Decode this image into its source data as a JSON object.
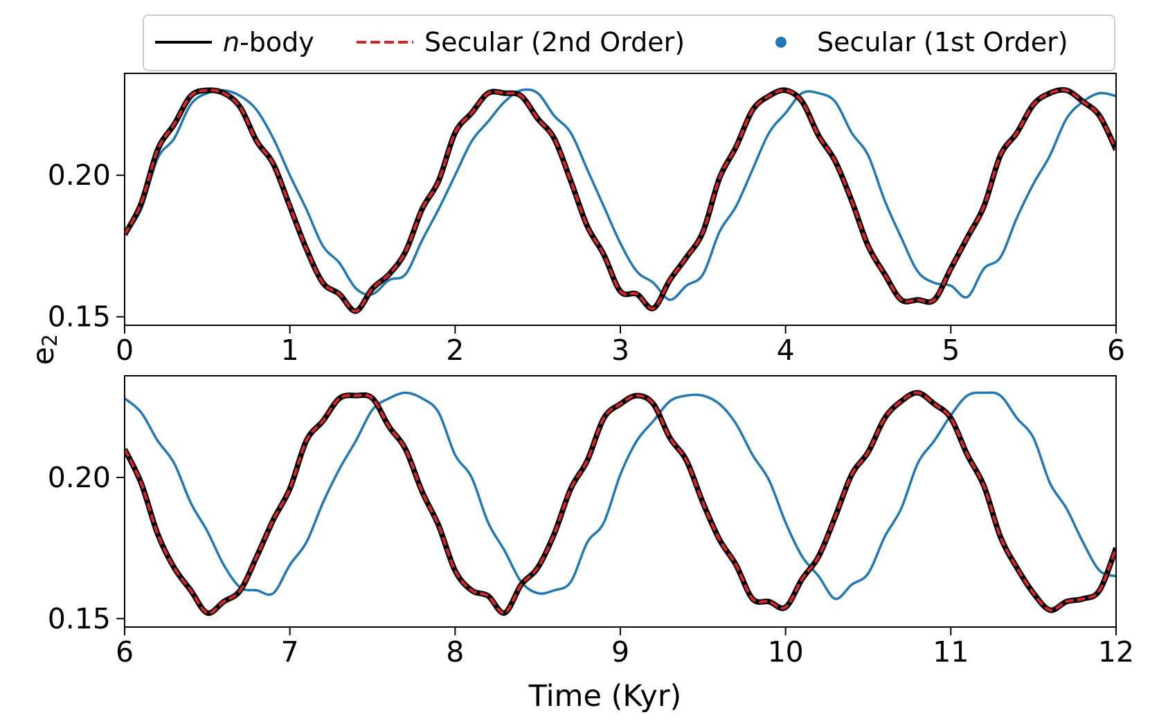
{
  "colors": {
    "nbody": "#000000",
    "secular2": "#d62728",
    "secular1": "#1f77b4"
  },
  "legend": {
    "items": [
      {
        "key": "nbody",
        "prefix": "n",
        "label": "-body",
        "style": "solid-line"
      },
      {
        "key": "secular2",
        "prefix": "",
        "label": "Secular (2nd Order)",
        "style": "dashed-line"
      },
      {
        "key": "secular1",
        "prefix": "",
        "label": "Secular (1st Order)",
        "style": "dot"
      }
    ]
  },
  "chart_data": [
    {
      "type": "line",
      "panel": "top",
      "xlim": [
        0,
        6
      ],
      "ylim": [
        0.147,
        0.236
      ],
      "x_ticks": [
        "0",
        "1",
        "2",
        "3",
        "4",
        "5",
        "6"
      ],
      "y_ticks": [
        "0.15",
        "0.20"
      ],
      "ylabel": "e",
      "ylabel_subscript": "2",
      "xlabel": "",
      "series": [
        {
          "name": "n-body",
          "key": "nbody",
          "x": [
            0.0,
            0.1,
            0.2,
            0.3,
            0.4,
            0.5,
            0.6,
            0.7,
            0.8,
            0.9,
            1.0,
            1.1,
            1.2,
            1.3,
            1.4,
            1.5,
            1.6,
            1.7,
            1.8,
            1.9,
            2.0,
            2.1,
            2.2,
            2.3,
            2.4,
            2.5,
            2.6,
            2.7,
            2.8,
            2.9,
            3.0,
            3.1,
            3.2,
            3.3,
            3.4,
            3.5,
            3.6,
            3.7,
            3.8,
            3.9,
            4.0,
            4.1,
            4.2,
            4.3,
            4.4,
            4.5,
            4.6,
            4.7,
            4.8,
            4.9,
            5.0,
            5.1,
            5.2,
            5.3,
            5.4,
            5.5,
            5.6,
            5.7,
            5.8,
            5.9,
            6.0
          ],
          "y": [
            0.179,
            0.19,
            0.209,
            0.218,
            0.228,
            0.23,
            0.229,
            0.224,
            0.212,
            0.204,
            0.189,
            0.174,
            0.162,
            0.158,
            0.152,
            0.16,
            0.165,
            0.173,
            0.188,
            0.198,
            0.215,
            0.222,
            0.229,
            0.229,
            0.228,
            0.22,
            0.213,
            0.198,
            0.182,
            0.172,
            0.159,
            0.158,
            0.153,
            0.163,
            0.171,
            0.18,
            0.199,
            0.21,
            0.223,
            0.228,
            0.23,
            0.226,
            0.214,
            0.205,
            0.191,
            0.175,
            0.165,
            0.156,
            0.156,
            0.156,
            0.167,
            0.178,
            0.189,
            0.207,
            0.215,
            0.225,
            0.229,
            0.23,
            0.226,
            0.221,
            0.209
          ]
        },
        {
          "name": "Secular (2nd Order)",
          "key": "secular2",
          "x": [
            0.0,
            0.1,
            0.2,
            0.3,
            0.4,
            0.5,
            0.6,
            0.7,
            0.8,
            0.9,
            1.0,
            1.1,
            1.2,
            1.3,
            1.4,
            1.5,
            1.6,
            1.7,
            1.8,
            1.9,
            2.0,
            2.1,
            2.2,
            2.3,
            2.4,
            2.5,
            2.6,
            2.7,
            2.8,
            2.9,
            3.0,
            3.1,
            3.2,
            3.3,
            3.4,
            3.5,
            3.6,
            3.7,
            3.8,
            3.9,
            4.0,
            4.1,
            4.2,
            4.3,
            4.4,
            4.5,
            4.6,
            4.7,
            4.8,
            4.9,
            5.0,
            5.1,
            5.2,
            5.3,
            5.4,
            5.5,
            5.6,
            5.7,
            5.8,
            5.9,
            6.0
          ],
          "y": [
            0.179,
            0.19,
            0.209,
            0.218,
            0.228,
            0.23,
            0.229,
            0.224,
            0.212,
            0.204,
            0.189,
            0.174,
            0.162,
            0.158,
            0.152,
            0.16,
            0.165,
            0.173,
            0.188,
            0.198,
            0.215,
            0.222,
            0.229,
            0.229,
            0.228,
            0.22,
            0.213,
            0.198,
            0.182,
            0.172,
            0.159,
            0.158,
            0.153,
            0.163,
            0.171,
            0.18,
            0.199,
            0.21,
            0.223,
            0.228,
            0.23,
            0.226,
            0.214,
            0.205,
            0.191,
            0.175,
            0.165,
            0.156,
            0.156,
            0.156,
            0.167,
            0.178,
            0.189,
            0.207,
            0.215,
            0.225,
            0.229,
            0.23,
            0.226,
            0.221,
            0.209
          ]
        },
        {
          "name": "Secular (1st Order)",
          "key": "secular1",
          "x": [
            0.0,
            0.1,
            0.2,
            0.3,
            0.4,
            0.5,
            0.6,
            0.7,
            0.8,
            0.9,
            1.0,
            1.1,
            1.2,
            1.3,
            1.4,
            1.5,
            1.6,
            1.7,
            1.8,
            1.9,
            2.0,
            2.1,
            2.2,
            2.3,
            2.4,
            2.5,
            2.6,
            2.7,
            2.8,
            2.9,
            3.0,
            3.1,
            3.2,
            3.3,
            3.4,
            3.5,
            3.6,
            3.7,
            3.8,
            3.9,
            4.0,
            4.1,
            4.2,
            4.3,
            4.4,
            4.5,
            4.6,
            4.7,
            4.8,
            4.9,
            5.0,
            5.1,
            5.2,
            5.3,
            5.4,
            5.5,
            5.6,
            5.7,
            5.8,
            5.9,
            6.0
          ],
          "y": [
            0.179,
            0.188,
            0.206,
            0.213,
            0.225,
            0.229,
            0.23,
            0.228,
            0.223,
            0.213,
            0.2,
            0.188,
            0.175,
            0.169,
            0.16,
            0.158,
            0.163,
            0.165,
            0.177,
            0.188,
            0.2,
            0.212,
            0.219,
            0.226,
            0.23,
            0.229,
            0.221,
            0.215,
            0.202,
            0.189,
            0.176,
            0.166,
            0.162,
            0.156,
            0.161,
            0.165,
            0.18,
            0.189,
            0.202,
            0.215,
            0.222,
            0.229,
            0.229,
            0.226,
            0.215,
            0.207,
            0.191,
            0.178,
            0.166,
            0.162,
            0.161,
            0.157,
            0.167,
            0.171,
            0.185,
            0.197,
            0.207,
            0.22,
            0.226,
            0.229,
            0.228
          ]
        }
      ]
    },
    {
      "type": "line",
      "panel": "bottom",
      "xlim": [
        6,
        12
      ],
      "ylim": [
        0.147,
        0.236
      ],
      "x_ticks": [
        "6",
        "7",
        "8",
        "9",
        "10",
        "11",
        "12"
      ],
      "y_ticks": [
        "0.15",
        "0.20"
      ],
      "xlabel": "Time (Kyr)",
      "ylabel": "",
      "series": [
        {
          "name": "n-body",
          "key": "nbody",
          "x": [
            6.0,
            6.1,
            6.2,
            6.3,
            6.4,
            6.5,
            6.6,
            6.7,
            6.8,
            6.9,
            7.0,
            7.1,
            7.2,
            7.3,
            7.4,
            7.5,
            7.6,
            7.7,
            7.8,
            7.9,
            8.0,
            8.1,
            8.2,
            8.3,
            8.4,
            8.5,
            8.6,
            8.7,
            8.8,
            8.9,
            9.0,
            9.1,
            9.2,
            9.3,
            9.4,
            9.5,
            9.6,
            9.7,
            9.8,
            9.9,
            10.0,
            10.1,
            10.2,
            10.3,
            10.4,
            10.5,
            10.6,
            10.7,
            10.8,
            10.9,
            11.0,
            11.1,
            11.2,
            11.3,
            11.4,
            11.5,
            11.6,
            11.7,
            11.8,
            11.9,
            12.0
          ],
          "y": [
            0.21,
            0.198,
            0.18,
            0.168,
            0.16,
            0.152,
            0.156,
            0.16,
            0.172,
            0.185,
            0.196,
            0.213,
            0.22,
            0.228,
            0.229,
            0.228,
            0.218,
            0.21,
            0.195,
            0.183,
            0.167,
            0.16,
            0.158,
            0.152,
            0.162,
            0.168,
            0.18,
            0.196,
            0.206,
            0.221,
            0.226,
            0.229,
            0.226,
            0.214,
            0.206,
            0.191,
            0.178,
            0.169,
            0.157,
            0.156,
            0.154,
            0.164,
            0.172,
            0.186,
            0.201,
            0.209,
            0.221,
            0.227,
            0.23,
            0.226,
            0.221,
            0.208,
            0.197,
            0.179,
            0.168,
            0.159,
            0.153,
            0.156,
            0.157,
            0.16,
            0.175
          ]
        },
        {
          "name": "Secular (2nd Order)",
          "key": "secular2",
          "x": [
            6.0,
            6.1,
            6.2,
            6.3,
            6.4,
            6.5,
            6.6,
            6.7,
            6.8,
            6.9,
            7.0,
            7.1,
            7.2,
            7.3,
            7.4,
            7.5,
            7.6,
            7.7,
            7.8,
            7.9,
            8.0,
            8.1,
            8.2,
            8.3,
            8.4,
            8.5,
            8.6,
            8.7,
            8.8,
            8.9,
            9.0,
            9.1,
            9.2,
            9.3,
            9.4,
            9.5,
            9.6,
            9.7,
            9.8,
            9.9,
            10.0,
            10.1,
            10.2,
            10.3,
            10.4,
            10.5,
            10.6,
            10.7,
            10.8,
            10.9,
            11.0,
            11.1,
            11.2,
            11.3,
            11.4,
            11.5,
            11.6,
            11.7,
            11.8,
            11.9,
            12.0
          ],
          "y": [
            0.21,
            0.198,
            0.18,
            0.168,
            0.16,
            0.152,
            0.156,
            0.16,
            0.172,
            0.185,
            0.196,
            0.213,
            0.22,
            0.228,
            0.229,
            0.228,
            0.218,
            0.21,
            0.195,
            0.183,
            0.167,
            0.16,
            0.158,
            0.152,
            0.162,
            0.168,
            0.18,
            0.196,
            0.206,
            0.221,
            0.226,
            0.229,
            0.226,
            0.214,
            0.206,
            0.191,
            0.178,
            0.169,
            0.157,
            0.156,
            0.154,
            0.164,
            0.172,
            0.186,
            0.201,
            0.209,
            0.221,
            0.227,
            0.23,
            0.226,
            0.221,
            0.208,
            0.197,
            0.179,
            0.168,
            0.159,
            0.153,
            0.156,
            0.157,
            0.16,
            0.175
          ]
        },
        {
          "name": "Secular (1st Order)",
          "key": "secular1",
          "x": [
            6.0,
            6.1,
            6.2,
            6.3,
            6.4,
            6.5,
            6.6,
            6.7,
            6.8,
            6.9,
            7.0,
            7.1,
            7.2,
            7.3,
            7.4,
            7.5,
            7.6,
            7.7,
            7.8,
            7.9,
            8.0,
            8.1,
            8.2,
            8.3,
            8.4,
            8.5,
            8.6,
            8.7,
            8.8,
            8.9,
            9.0,
            9.1,
            9.2,
            9.3,
            9.4,
            9.5,
            9.6,
            9.7,
            9.8,
            9.9,
            10.0,
            10.1,
            10.2,
            10.3,
            10.4,
            10.5,
            10.6,
            10.7,
            10.8,
            10.9,
            11.0,
            11.1,
            11.2,
            11.3,
            11.4,
            11.5,
            11.6,
            11.7,
            11.8,
            11.9,
            12.0
          ],
          "y": [
            0.228,
            0.223,
            0.213,
            0.205,
            0.191,
            0.181,
            0.169,
            0.161,
            0.16,
            0.159,
            0.169,
            0.177,
            0.191,
            0.203,
            0.213,
            0.224,
            0.228,
            0.23,
            0.228,
            0.223,
            0.208,
            0.2,
            0.184,
            0.174,
            0.163,
            0.159,
            0.16,
            0.163,
            0.177,
            0.184,
            0.201,
            0.213,
            0.22,
            0.227,
            0.229,
            0.229,
            0.226,
            0.219,
            0.208,
            0.199,
            0.184,
            0.172,
            0.165,
            0.157,
            0.162,
            0.166,
            0.179,
            0.189,
            0.205,
            0.213,
            0.222,
            0.229,
            0.23,
            0.229,
            0.221,
            0.214,
            0.198,
            0.189,
            0.177,
            0.167,
            0.165
          ]
        }
      ]
    }
  ]
}
